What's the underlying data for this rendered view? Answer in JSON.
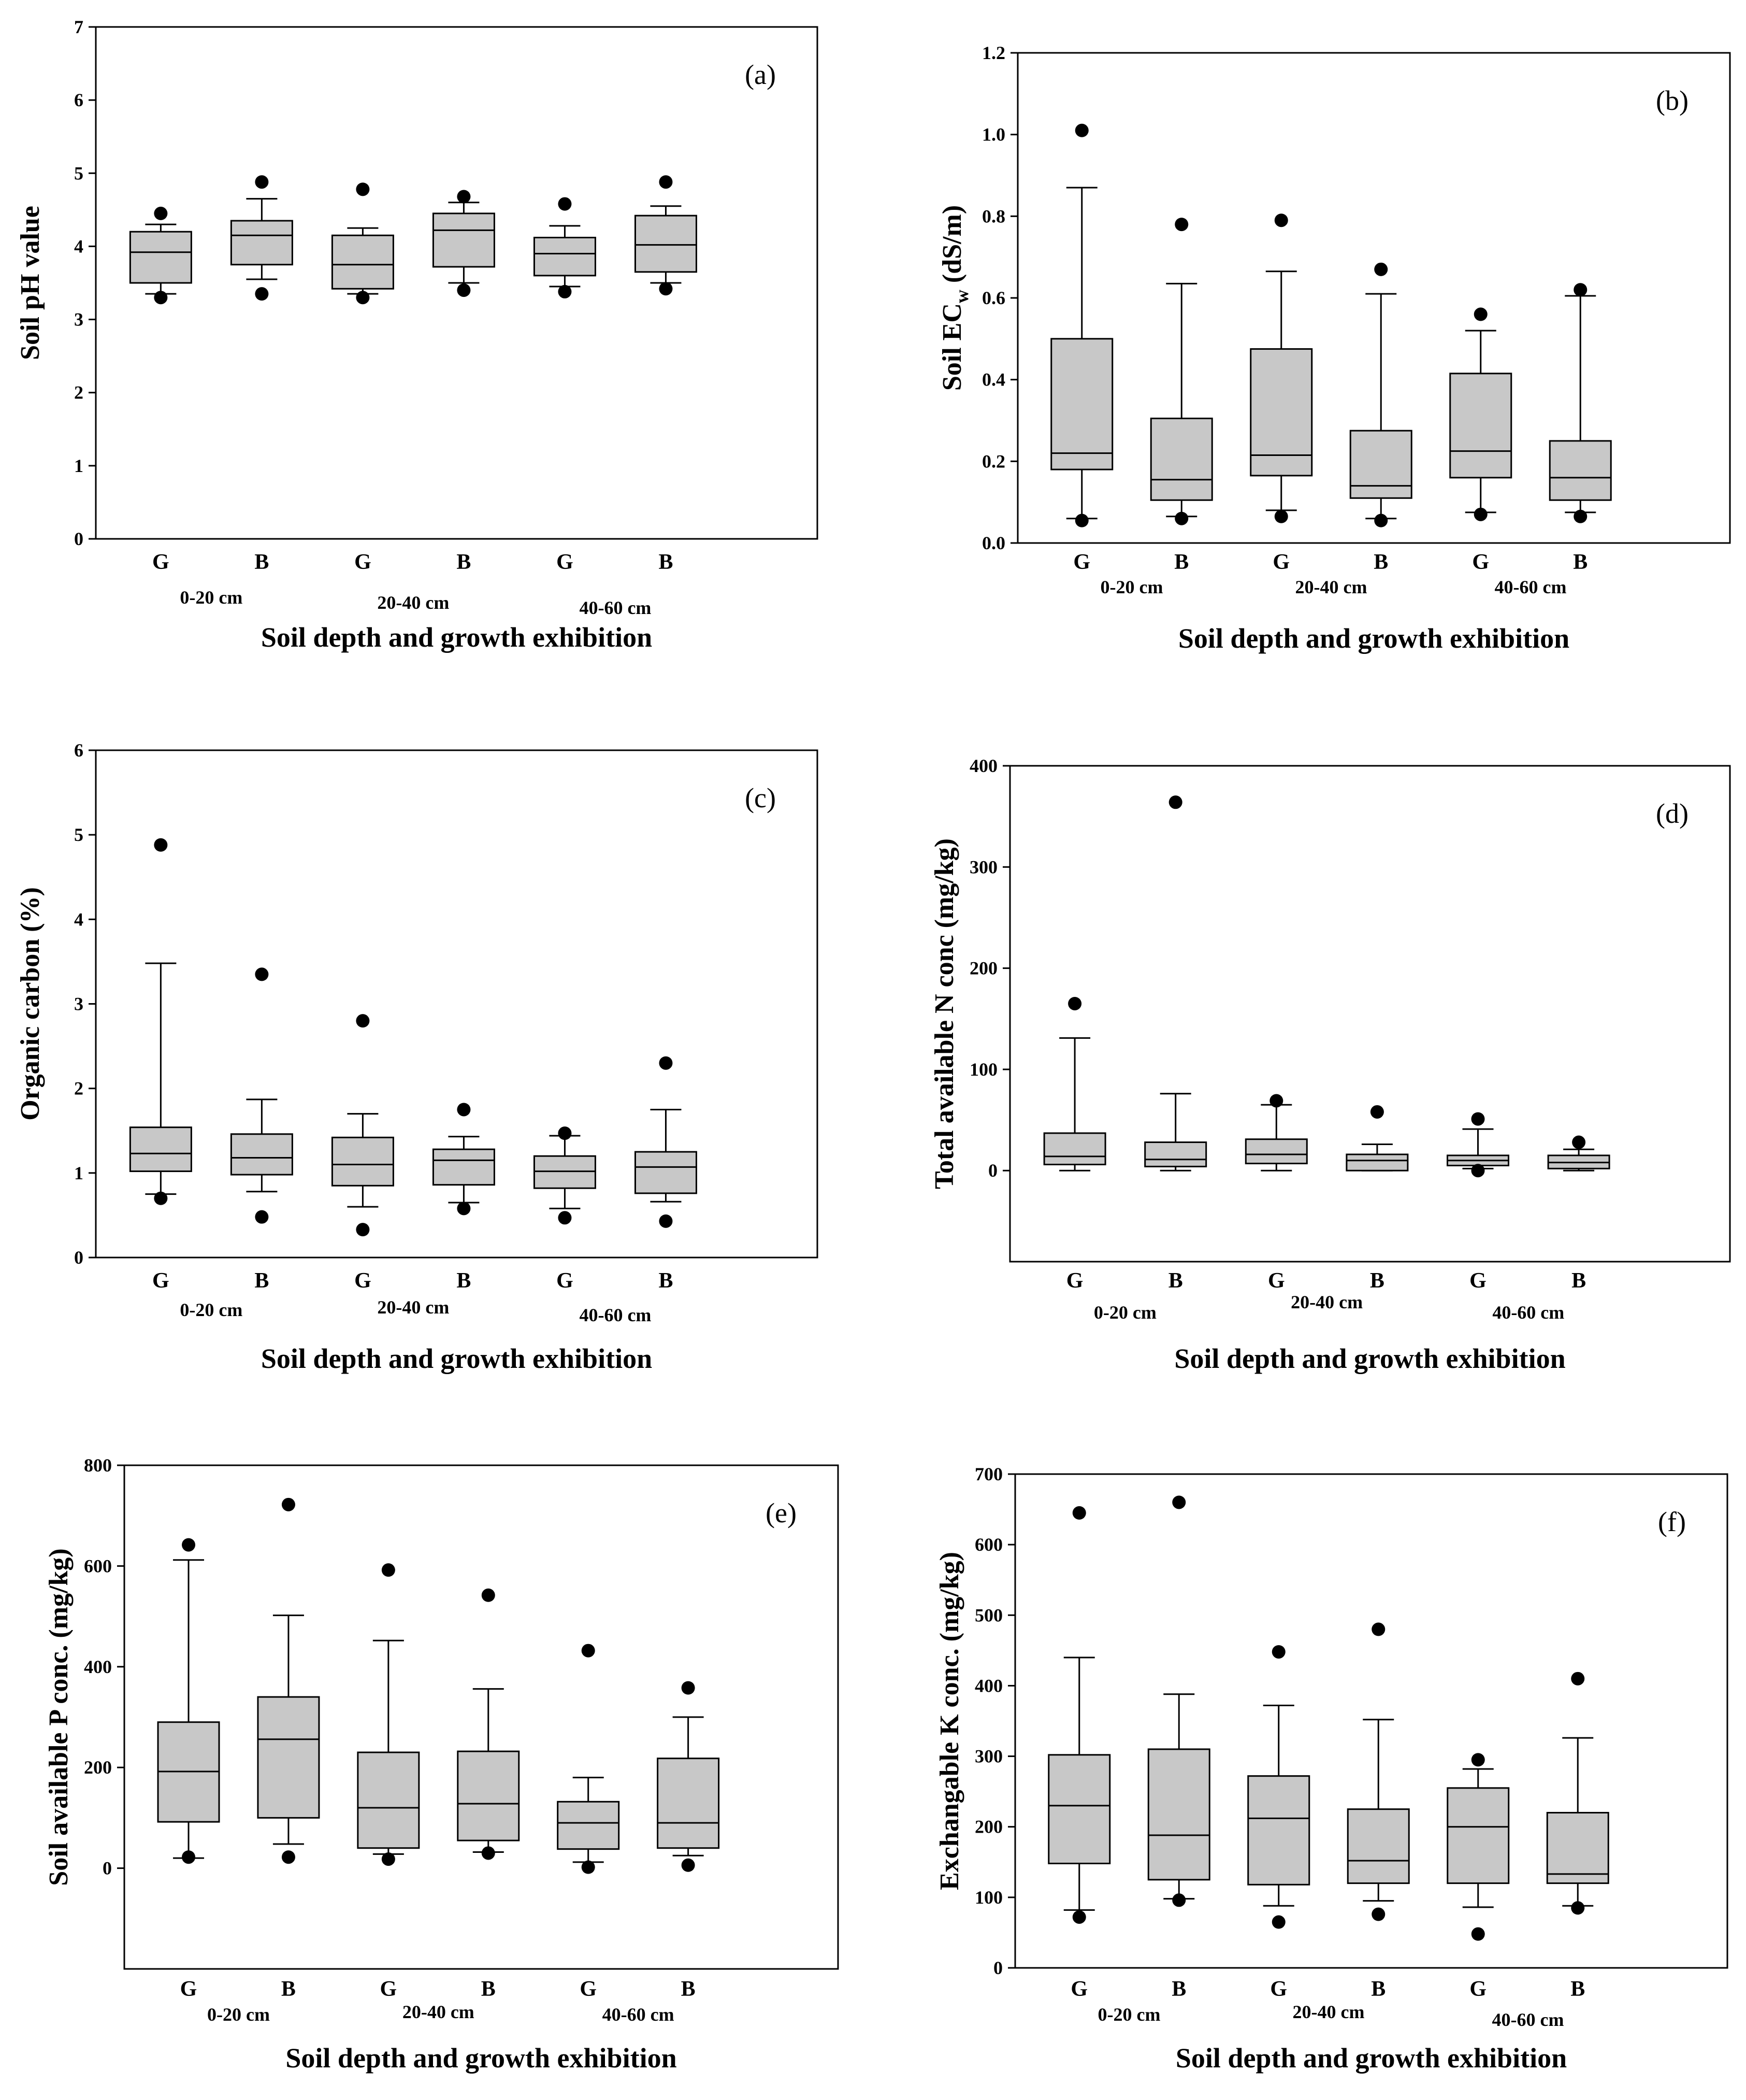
{
  "chart_data": [
    {
      "type": "box",
      "panel_label": "(a)",
      "ylabel": "Soil pH value",
      "xlabel": "Soil depth and growth exhibition",
      "ylim": [
        0,
        7
      ],
      "yticks": [
        0,
        1,
        2,
        3,
        4,
        5,
        6,
        7
      ],
      "ytick_labels": [
        "0",
        "1",
        "2",
        "3",
        "4",
        "5",
        "6",
        "7"
      ],
      "categories": [
        "G",
        "B",
        "G",
        "B",
        "G",
        "B"
      ],
      "groups": [
        "0-20 cm",
        "20-40 cm",
        "40-60 cm"
      ],
      "boxes": [
        {
          "whislo": 3.35,
          "q1": 3.5,
          "med": 3.92,
          "q3": 4.2,
          "whishi": 4.3,
          "fliers": [
            3.3,
            4.45
          ]
        },
        {
          "whislo": 3.55,
          "q1": 3.75,
          "med": 4.15,
          "q3": 4.35,
          "whishi": 4.65,
          "fliers": [
            3.35,
            4.88
          ]
        },
        {
          "whislo": 3.35,
          "q1": 3.42,
          "med": 3.75,
          "q3": 4.15,
          "whishi": 4.25,
          "fliers": [
            3.3,
            4.78
          ]
        },
        {
          "whislo": 3.5,
          "q1": 3.72,
          "med": 4.22,
          "q3": 4.45,
          "whishi": 4.6,
          "fliers": [
            3.4,
            4.68
          ]
        },
        {
          "whislo": 3.45,
          "q1": 3.6,
          "med": 3.9,
          "q3": 4.12,
          "whishi": 4.28,
          "fliers": [
            3.38,
            4.58
          ]
        },
        {
          "whislo": 3.5,
          "q1": 3.65,
          "med": 4.02,
          "q3": 4.42,
          "whishi": 4.55,
          "fliers": [
            3.42,
            4.88
          ]
        }
      ]
    },
    {
      "type": "box",
      "panel_label": "(b)",
      "ylabel_main": "Soil EC",
      "ylabel_sub": "w",
      "ylabel_end": " (dS/m)",
      "xlabel": "Soil depth and growth exhibition",
      "ylim": [
        0,
        1.2
      ],
      "yticks": [
        0,
        0.2,
        0.4,
        0.6,
        0.8,
        1.0,
        1.2
      ],
      "ytick_labels": [
        "0.0",
        "0.2",
        "0.4",
        "0.6",
        "0.8",
        "1.0",
        "1.2"
      ],
      "categories": [
        "G",
        "B",
        "G",
        "B",
        "G",
        "B"
      ],
      "groups": [
        "0-20 cm",
        "20-40 cm",
        "40-60 cm"
      ],
      "boxes": [
        {
          "whislo": 0.06,
          "q1": 0.18,
          "med": 0.22,
          "q3": 0.5,
          "whishi": 0.87,
          "fliers": [
            0.055,
            1.01
          ]
        },
        {
          "whislo": 0.065,
          "q1": 0.105,
          "med": 0.155,
          "q3": 0.305,
          "whishi": 0.635,
          "fliers": [
            0.06,
            0.78
          ]
        },
        {
          "whislo": 0.08,
          "q1": 0.165,
          "med": 0.215,
          "q3": 0.475,
          "whishi": 0.665,
          "fliers": [
            0.065,
            0.79
          ]
        },
        {
          "whislo": 0.06,
          "q1": 0.11,
          "med": 0.14,
          "q3": 0.275,
          "whishi": 0.61,
          "fliers": [
            0.055,
            0.67
          ]
        },
        {
          "whislo": 0.075,
          "q1": 0.16,
          "med": 0.225,
          "q3": 0.415,
          "whishi": 0.52,
          "fliers": [
            0.07,
            0.56
          ]
        },
        {
          "whislo": 0.075,
          "q1": 0.105,
          "med": 0.16,
          "q3": 0.25,
          "whishi": 0.605,
          "fliers": [
            0.065,
            0.62
          ]
        }
      ]
    },
    {
      "type": "box",
      "panel_label": "(c)",
      "ylabel": "Organic carbon (%)",
      "xlabel": "Soil depth and growth exhibition",
      "ylim": [
        0,
        6
      ],
      "yticks": [
        0,
        1,
        2,
        3,
        4,
        5,
        6
      ],
      "ytick_labels": [
        "0",
        "1",
        "2",
        "3",
        "4",
        "5",
        "6"
      ],
      "categories": [
        "G",
        "B",
        "G",
        "B",
        "G",
        "B"
      ],
      "groups": [
        "0-20 cm",
        "20-40 cm",
        "40-60 cm"
      ],
      "boxes": [
        {
          "whislo": 0.75,
          "q1": 1.02,
          "med": 1.23,
          "q3": 1.54,
          "whishi": 3.48,
          "fliers": [
            0.7,
            4.88
          ]
        },
        {
          "whislo": 0.78,
          "q1": 0.98,
          "med": 1.18,
          "q3": 1.46,
          "whishi": 1.87,
          "fliers": [
            0.48,
            3.35
          ]
        },
        {
          "whislo": 0.6,
          "q1": 0.85,
          "med": 1.1,
          "q3": 1.42,
          "whishi": 1.7,
          "fliers": [
            0.33,
            2.8
          ]
        },
        {
          "whislo": 0.65,
          "q1": 0.86,
          "med": 1.15,
          "q3": 1.28,
          "whishi": 1.43,
          "fliers": [
            0.58,
            1.75
          ]
        },
        {
          "whislo": 0.58,
          "q1": 0.82,
          "med": 1.02,
          "q3": 1.2,
          "whishi": 1.44,
          "fliers": [
            0.47,
            1.47
          ]
        },
        {
          "whislo": 0.66,
          "q1": 0.76,
          "med": 1.07,
          "q3": 1.25,
          "whishi": 1.75,
          "fliers": [
            0.43,
            2.3
          ]
        }
      ]
    },
    {
      "type": "box",
      "panel_label": "(d)",
      "ylabel": "Total available N conc (mg/kg)",
      "xlabel": "Soil depth and growth exhibition",
      "ylim": [
        -90,
        400
      ],
      "yticks": [
        0,
        100,
        200,
        300,
        400
      ],
      "ytick_labels": [
        "0",
        "100",
        "200",
        "300",
        "400"
      ],
      "categories": [
        "G",
        "B",
        "G",
        "B",
        "G",
        "B"
      ],
      "groups": [
        "0-20 cm",
        "20-40 cm",
        "40-60 cm"
      ],
      "boxes": [
        {
          "whislo": 0,
          "q1": 6,
          "med": 14,
          "q3": 37,
          "whishi": 131,
          "fliers": [
            165
          ]
        },
        {
          "whislo": 0,
          "q1": 4,
          "med": 11,
          "q3": 28,
          "whishi": 76,
          "fliers": [
            364
          ]
        },
        {
          "whislo": 0,
          "q1": 7,
          "med": 16,
          "q3": 31,
          "whishi": 65,
          "fliers": [
            69
          ]
        },
        {
          "whislo": 0,
          "q1": 0,
          "med": 10,
          "q3": 16,
          "whishi": 26,
          "fliers": [
            58
          ]
        },
        {
          "whislo": 2,
          "q1": 5,
          "med": 10,
          "q3": 15,
          "whishi": 41,
          "fliers": [
            0,
            51
          ]
        },
        {
          "whislo": 0,
          "q1": 2,
          "med": 8,
          "q3": 15,
          "whishi": 21,
          "fliers": [
            28
          ]
        }
      ]
    },
    {
      "type": "box",
      "panel_label": "(e)",
      "ylabel": "Soil available P conc. (mg/kg)",
      "xlabel": "Soil depth and growth exhibition",
      "ylim": [
        -200,
        800
      ],
      "yticks": [
        0,
        200,
        400,
        600,
        800
      ],
      "ytick_labels": [
        "0",
        "200",
        "400",
        "600",
        "800"
      ],
      "categories": [
        "G",
        "B",
        "G",
        "B",
        "G",
        "B"
      ],
      "groups": [
        "0-20 cm",
        "20-40 cm",
        "40-60 cm"
      ],
      "boxes": [
        {
          "whislo": 20,
          "q1": 92,
          "med": 192,
          "q3": 290,
          "whishi": 612,
          "fliers": [
            22,
            642
          ]
        },
        {
          "whislo": 48,
          "q1": 100,
          "med": 256,
          "q3": 340,
          "whishi": 502,
          "fliers": [
            22,
            722
          ]
        },
        {
          "whislo": 28,
          "q1": 40,
          "med": 120,
          "q3": 230,
          "whishi": 452,
          "fliers": [
            18,
            592
          ]
        },
        {
          "whislo": 32,
          "q1": 55,
          "med": 128,
          "q3": 232,
          "whishi": 356,
          "fliers": [
            30,
            542
          ]
        },
        {
          "whislo": 12,
          "q1": 38,
          "med": 90,
          "q3": 132,
          "whishi": 180,
          "fliers": [
            2,
            432
          ]
        },
        {
          "whislo": 25,
          "q1": 40,
          "med": 90,
          "q3": 218,
          "whishi": 300,
          "fliers": [
            6,
            358
          ]
        }
      ]
    },
    {
      "type": "box",
      "panel_label": "(f)",
      "ylabel": "Exchangable K conc. (mg/kg)",
      "xlabel": "Soil depth and growth exhibition",
      "ylim": [
        0,
        700
      ],
      "yticks": [
        0,
        100,
        200,
        300,
        400,
        500,
        600,
        700
      ],
      "ytick_labels": [
        "0",
        "100",
        "200",
        "300",
        "400",
        "500",
        "600",
        "700"
      ],
      "categories": [
        "G",
        "B",
        "G",
        "B",
        "G",
        "B"
      ],
      "groups": [
        "0-20 cm",
        "20-40 cm",
        "40-60 cm"
      ],
      "boxes": [
        {
          "whislo": 82,
          "q1": 148,
          "med": 230,
          "q3": 302,
          "whishi": 440,
          "fliers": [
            72,
            645
          ]
        },
        {
          "whislo": 98,
          "q1": 125,
          "med": 188,
          "q3": 310,
          "whishi": 388,
          "fliers": [
            96,
            660
          ]
        },
        {
          "whislo": 88,
          "q1": 118,
          "med": 212,
          "q3": 272,
          "whishi": 372,
          "fliers": [
            65,
            448
          ]
        },
        {
          "whislo": 95,
          "q1": 120,
          "med": 152,
          "q3": 225,
          "whishi": 352,
          "fliers": [
            76,
            480
          ]
        },
        {
          "whislo": 86,
          "q1": 120,
          "med": 200,
          "q3": 255,
          "whishi": 282,
          "fliers": [
            48,
            295
          ]
        },
        {
          "whislo": 88,
          "q1": 120,
          "med": 133,
          "q3": 220,
          "whishi": 326,
          "fliers": [
            85,
            410
          ]
        }
      ]
    }
  ]
}
